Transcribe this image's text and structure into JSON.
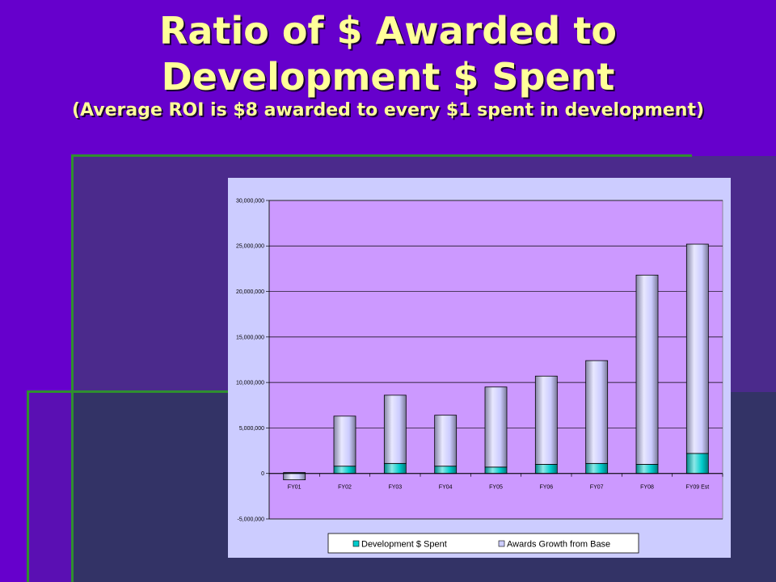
{
  "slide": {
    "title_line1": "Ratio of $ Awarded to",
    "title_line2": "Development $ Spent",
    "subtitle": "(Average ROI is $8 awarded to every $1 spent in development)"
  },
  "colors": {
    "slide_background": "#6600CC",
    "title_text": "#FFFF99",
    "accent_line": "#2F8F2F",
    "chart_background": "#CCCCFF",
    "plot_background": "#CC99FF"
  },
  "chart_data": {
    "type": "bar",
    "stacked": true,
    "categories": [
      "FY01",
      "FY02",
      "FY03",
      "FY04",
      "FY05",
      "FY06",
      "FY07",
      "FY08",
      "FY09 Est"
    ],
    "series": [
      {
        "name": "Development $ Spent",
        "color": "#00CCCC",
        "values": [
          100000,
          800000,
          1100000,
          800000,
          700000,
          1000000,
          1100000,
          1000000,
          2200000
        ]
      },
      {
        "name": "Awards Growth from Base",
        "color": "#CCCCFF",
        "values": [
          -700000,
          5500000,
          7500000,
          5600000,
          8800000,
          9700000,
          11300000,
          20800000,
          23000000
        ]
      }
    ],
    "ylim": [
      -5000000,
      30000000
    ],
    "y_ticks": [
      30000000,
      25000000,
      20000000,
      15000000,
      10000000,
      5000000,
      0,
      -5000000
    ],
    "y_tick_labels": [
      "30,000,000",
      "25,000,000",
      "20,000,000",
      "15,000,000",
      "10,000,000",
      "5,000,000",
      "0",
      "-5,000,000"
    ],
    "grid": true,
    "legend": "bottom"
  }
}
